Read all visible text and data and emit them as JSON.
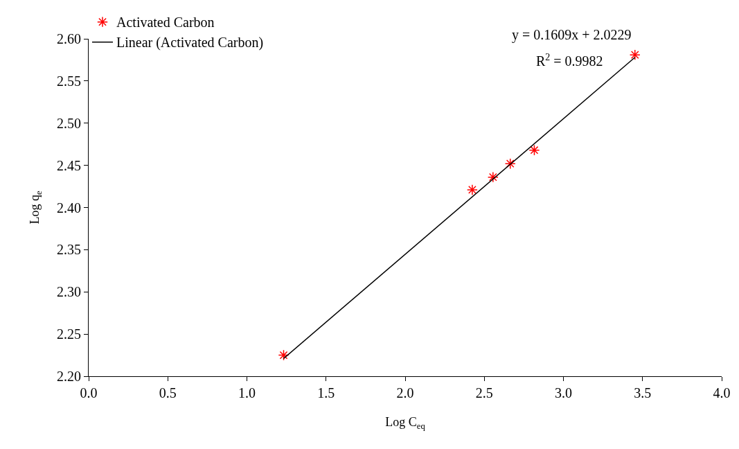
{
  "chart_data": {
    "type": "scatter",
    "xlabel": "Log C$_{eq}$",
    "ylabel": "Log q$_{e}$",
    "xlim": [
      0,
      4
    ],
    "xticks": [
      {
        "value": 0,
        "label": "0.0"
      },
      0.5,
      {
        "value": 1,
        "label": "1.0"
      },
      1.5,
      {
        "value": 2,
        "label": "2.0"
      },
      2.5,
      {
        "value": 3,
        "label": "3.0"
      },
      3.5,
      {
        "value": 4,
        "label": "4.0"
      }
    ],
    "ylim": [
      2.2,
      2.6
    ],
    "yticks": [
      {
        "value": 2.2,
        "label": "2.20"
      },
      2.25,
      {
        "value": 2.3,
        "label": "2.30"
      },
      2.35,
      {
        "value": 2.4,
        "label": "2.40"
      },
      2.45,
      {
        "value": 2.5,
        "label": "2.50"
      },
      2.55,
      {
        "value": 2.6,
        "label": "2.60"
      }
    ],
    "series": [
      {
        "name": "Activated Carbon",
        "marker": "cross",
        "color": "#ff0000",
        "x": [
          1.232,
          2.424,
          2.555,
          2.664,
          2.816,
          3.452
        ],
        "values": [
          2.225,
          2.421,
          2.436,
          2.452,
          2.468,
          2.581
        ]
      },
      {
        "name": "Linear (Activated Carbon)",
        "type": "line",
        "marker": "none",
        "line_style": "solid",
        "color": "#000000",
        "x": [
          1.232,
          3.452
        ],
        "values": [
          2.221,
          2.578
        ]
      }
    ],
    "annotations": [
      "y = 0.1609x + 2.0229",
      "R$^{2}$ = 0.9982"
    ],
    "legend": "top left"
  }
}
